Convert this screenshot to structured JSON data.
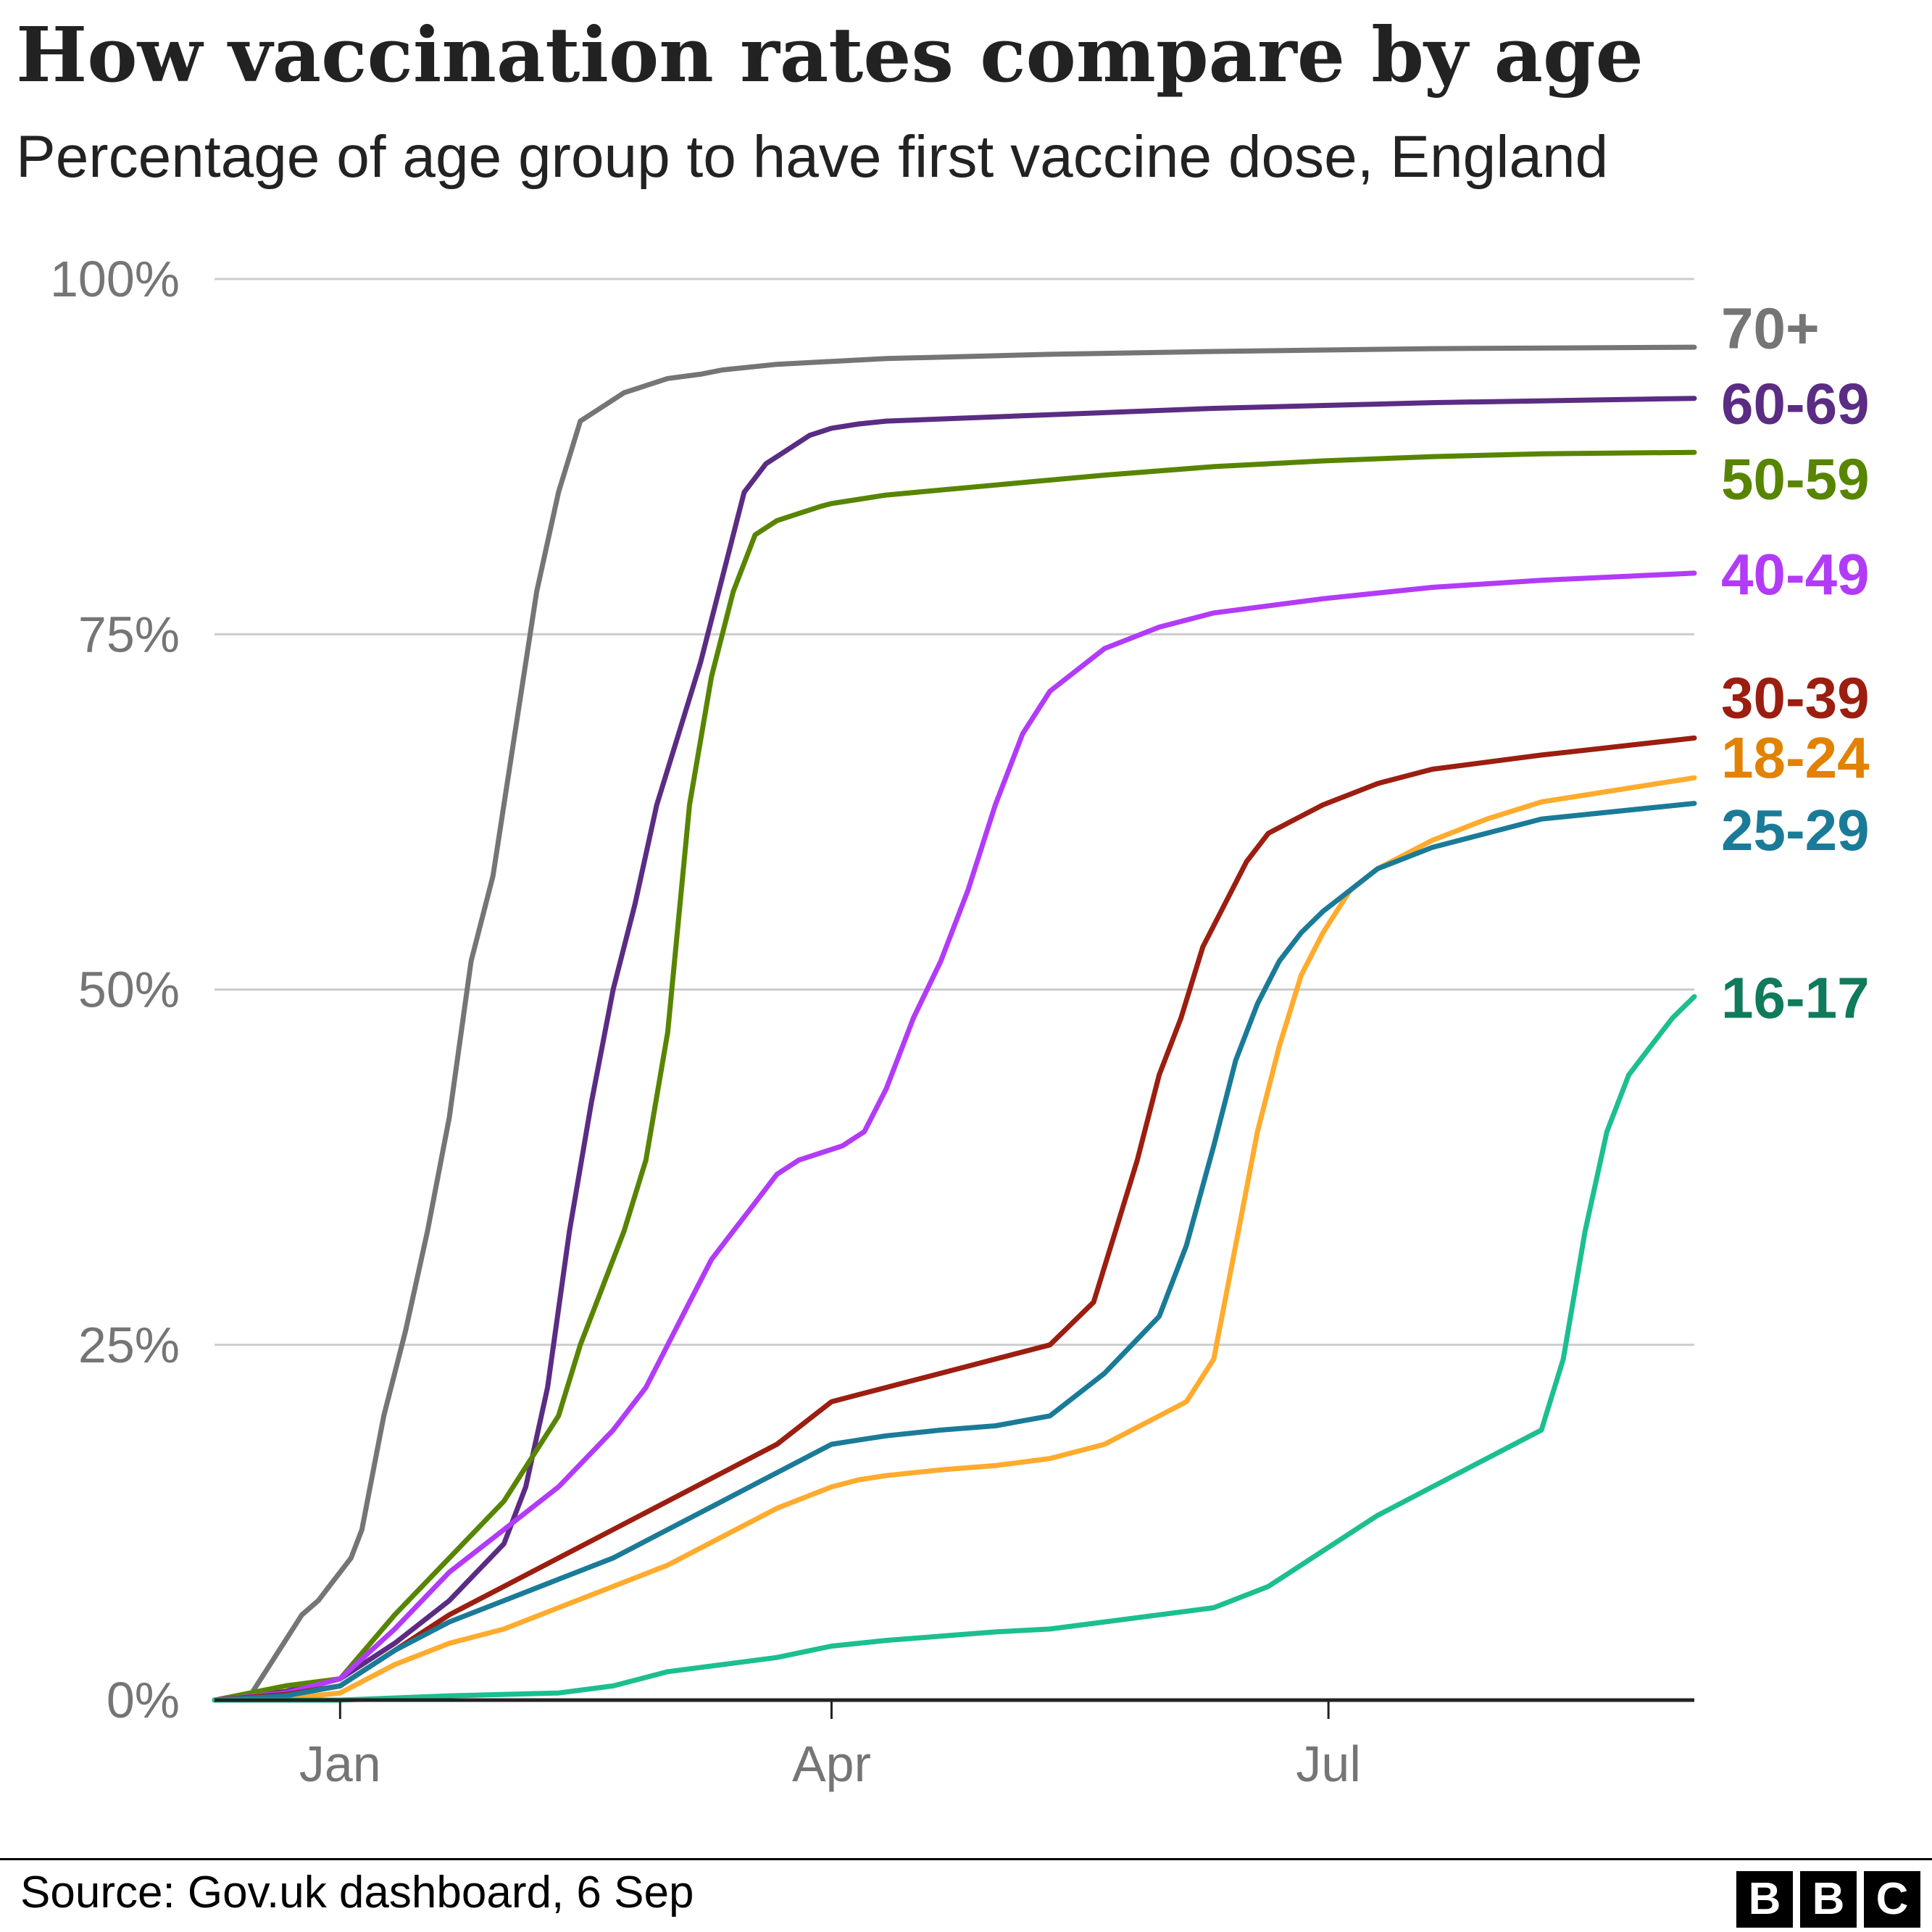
{
  "title": "How vaccination rates compare by age",
  "subtitle": "Percentage of age group to have first vaccine dose, England",
  "source": "Source: Gov.uk dashboard, 6 Sep",
  "logo": {
    "letters": [
      "B",
      "B",
      "C"
    ]
  },
  "chart_data": {
    "type": "line",
    "title": "How vaccination rates compare by age",
    "subtitle": "Percentage of age group to have first vaccine dose, England",
    "xlabel": "",
    "ylabel": "",
    "x_ticks": [
      "Jan",
      "Apr",
      "Jul"
    ],
    "x_tick_positions": [
      0,
      90,
      181
    ],
    "xlim": [
      -23,
      248
    ],
    "ylim": [
      0,
      100
    ],
    "y_ticks": [
      0,
      25,
      50,
      75,
      100
    ],
    "y_tick_labels": [
      "0%",
      "25%",
      "50%",
      "75%",
      "100%"
    ],
    "grid": true,
    "legend": "labels at line ends (right)",
    "series": [
      {
        "name": "70+",
        "color": "#757575",
        "x": [
          -23,
          -17,
          -12,
          -7,
          -4,
          -2,
          2,
          4,
          8,
          12,
          16,
          20,
          24,
          28,
          32,
          36,
          40,
          44,
          48,
          52,
          56,
          60,
          66,
          70,
          80,
          100,
          130,
          160,
          200,
          248
        ],
        "y": [
          0,
          0,
          3,
          6,
          7,
          8,
          10,
          12,
          20,
          26,
          33,
          41,
          52,
          58,
          68,
          78,
          85,
          90,
          91,
          92,
          92.5,
          93,
          93.3,
          93.6,
          94,
          94.4,
          94.7,
          94.9,
          95.1,
          95.2
        ]
      },
      {
        "name": "60-69",
        "color": "#5B2C83",
        "x": [
          -23,
          -10,
          0,
          10,
          20,
          30,
          34,
          38,
          42,
          46,
          50,
          54,
          58,
          62,
          66,
          70,
          74,
          78,
          82,
          86,
          90,
          95,
          100,
          120,
          160,
          200,
          248
        ],
        "y": [
          0,
          0.6,
          1.5,
          4,
          7,
          11,
          15,
          22,
          33,
          42,
          50,
          56,
          63,
          68,
          73,
          79,
          85,
          87,
          88,
          89,
          89.5,
          89.8,
          90,
          90.3,
          90.9,
          91.3,
          91.6
        ]
      },
      {
        "name": "50-59",
        "color": "#588500",
        "x": [
          -23,
          -10,
          0,
          10,
          20,
          30,
          40,
          44,
          48,
          52,
          56,
          60,
          64,
          68,
          72,
          76,
          80,
          84,
          88,
          90,
          95,
          100,
          120,
          140,
          160,
          180,
          200,
          220,
          248
        ],
        "y": [
          0,
          1,
          1.5,
          6,
          10,
          14,
          20,
          25,
          29,
          33,
          38,
          47,
          63,
          72,
          78,
          82,
          83,
          83.5,
          84,
          84.2,
          84.5,
          84.8,
          85.5,
          86.2,
          86.8,
          87.2,
          87.5,
          87.7,
          87.8
        ]
      },
      {
        "name": "40-49",
        "color": "#B23BF8",
        "x": [
          -23,
          -10,
          0,
          10,
          20,
          30,
          40,
          50,
          56,
          60,
          64,
          68,
          72,
          76,
          80,
          84,
          88,
          92,
          96,
          100,
          105,
          110,
          115,
          120,
          125,
          130,
          140,
          150,
          160,
          180,
          200,
          220,
          248
        ],
        "y": [
          0,
          0.5,
          1.5,
          5,
          9,
          12,
          15,
          19,
          22,
          25,
          28,
          31,
          33,
          35,
          37,
          38,
          38.5,
          39,
          40,
          43,
          48,
          52,
          57,
          63,
          68,
          71,
          74,
          75.5,
          76.5,
          77.5,
          78.3,
          78.8,
          79.3
        ]
      },
      {
        "name": "30-39",
        "color": "#9B1E10",
        "x": [
          -23,
          -10,
          0,
          10,
          20,
          30,
          40,
          50,
          60,
          70,
          80,
          90,
          95,
          100,
          110,
          120,
          130,
          138,
          142,
          146,
          150,
          154,
          158,
          162,
          166,
          170,
          175,
          180,
          190,
          200,
          220,
          248
        ],
        "y": [
          0,
          0.4,
          1,
          3.5,
          6,
          8,
          10,
          12,
          14,
          16,
          18,
          21,
          21.5,
          22,
          23,
          24,
          25,
          28,
          33,
          38,
          44,
          48,
          53,
          56,
          59,
          61,
          62,
          63,
          64.5,
          65.5,
          66.5,
          67.7
        ]
      },
      {
        "name": "18-24",
        "color": "#FFAB2D",
        "x": [
          -23,
          -10,
          0,
          10,
          20,
          30,
          40,
          50,
          60,
          70,
          80,
          90,
          95,
          100,
          110,
          120,
          130,
          140,
          150,
          155,
          160,
          164,
          168,
          172,
          176,
          180,
          185,
          190,
          195,
          200,
          210,
          220,
          248
        ],
        "y": [
          0,
          0.1,
          0.5,
          2.5,
          4,
          5,
          6.5,
          8,
          9.5,
          11.5,
          13.5,
          15,
          15.5,
          15.8,
          16.2,
          16.5,
          17,
          18,
          20,
          21,
          24,
          32,
          40,
          46,
          51,
          54,
          57,
          58.5,
          59.5,
          60.5,
          62,
          63.2,
          64.9
        ]
      },
      {
        "name": "25-29",
        "color": "#1A7B98",
        "x": [
          -23,
          -10,
          0,
          10,
          20,
          30,
          40,
          50,
          60,
          70,
          80,
          90,
          95,
          100,
          110,
          120,
          130,
          140,
          145,
          150,
          155,
          160,
          164,
          168,
          172,
          176,
          180,
          185,
          190,
          200,
          220,
          248
        ],
        "y": [
          0,
          0.3,
          1,
          3.5,
          5.5,
          7,
          8.5,
          10,
          12,
          14,
          16,
          18,
          18.3,
          18.6,
          19,
          19.3,
          20,
          23,
          25,
          27,
          32,
          39,
          45,
          49,
          52,
          54,
          55.5,
          57,
          58.5,
          60,
          62,
          63.1
        ]
      },
      {
        "name": "16-17",
        "color": "#1CBF8F",
        "x": [
          -23,
          0,
          20,
          40,
          50,
          60,
          70,
          80,
          90,
          100,
          110,
          120,
          130,
          140,
          150,
          160,
          170,
          180,
          190,
          200,
          210,
          215,
          220,
          224,
          228,
          232,
          236,
          240,
          244,
          248
        ],
        "y": [
          0,
          0,
          0.3,
          0.5,
          1,
          2,
          2.5,
          3,
          3.8,
          4.2,
          4.5,
          4.8,
          5,
          5.5,
          6,
          6.5,
          8,
          10.5,
          13,
          15,
          17,
          18,
          19,
          24,
          33,
          40,
          44,
          46,
          48,
          49.5
        ]
      }
    ],
    "end_labels": [
      {
        "text": "70+",
        "color": "#757575",
        "y": 96.5
      },
      {
        "text": "60-69",
        "color": "#5B2C83",
        "y": 91.2
      },
      {
        "text": "50-59",
        "color": "#588500",
        "y": 85.9
      },
      {
        "text": "40-49",
        "color": "#B23BF8",
        "y": 79.2
      },
      {
        "text": "30-39",
        "color": "#9B1E10",
        "y": 70.5
      },
      {
        "text": "18-24",
        "color": "#E28200",
        "y": 66.3
      },
      {
        "text": "25-29",
        "color": "#1A7B98",
        "y": 61.2
      },
      {
        "text": "16-17",
        "color": "#0F7A5C",
        "y": 49.4
      }
    ]
  }
}
